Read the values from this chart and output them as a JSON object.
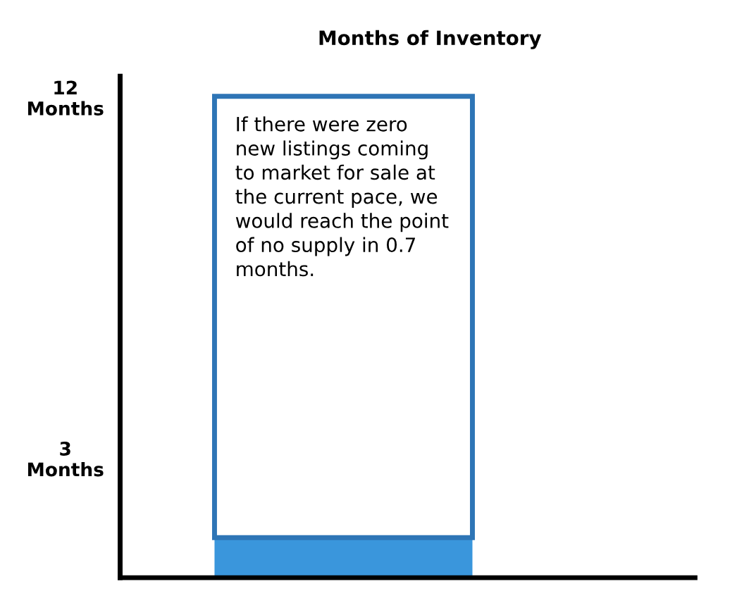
{
  "chart_data": {
    "type": "bar",
    "title": "Months of Inventory",
    "stacked": true,
    "categories": [
      null
    ],
    "series": [
      {
        "color": "#3a96dc",
        "values": [
          1
        ]
      },
      {
        "color": "#2e75b6",
        "values": [
          11
        ]
      }
    ],
    "ylim": [
      0,
      12.5
    ],
    "yticks": [
      {
        "value": 3,
        "label": "3\nMonths"
      },
      {
        "value": 12,
        "label": "12\nMonths"
      }
    ],
    "annotations": [
      "If there were zero\nnew listings coming\nto market for sale at\nthe current pace, we\nwould reach the point\nof no supply in 0.7\nmonths."
    ],
    "grid": false,
    "legend": false
  }
}
